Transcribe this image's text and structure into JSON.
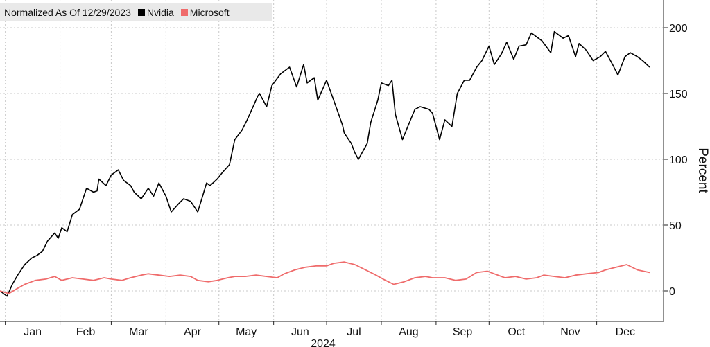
{
  "chart_data": {
    "type": "line",
    "title": "Normalized As Of 12/29/2023",
    "ylabel": "Percent",
    "xlabel": "2024",
    "ylim": [
      -25,
      220
    ],
    "yticks": [
      0,
      50,
      100,
      150,
      200
    ],
    "grid": true,
    "legend_position": "top-left",
    "x_months": [
      "Jan",
      "Feb",
      "Mar",
      "Apr",
      "May",
      "Jun",
      "Jul",
      "Aug",
      "Sep",
      "Oct",
      "Nov",
      "Dec"
    ],
    "series": [
      {
        "name": "Nvidia",
        "color": "#000000",
        "x": [
          "2023-12-29",
          "2024-01-02",
          "2024-01-05",
          "2024-01-08",
          "2024-01-10",
          "2024-01-12",
          "2024-01-16",
          "2024-01-19",
          "2024-01-22",
          "2024-01-25",
          "2024-01-29",
          "2024-01-31",
          "2024-02-02",
          "2024-02-05",
          "2024-02-08",
          "2024-02-12",
          "2024-02-14",
          "2024-02-16",
          "2024-02-20",
          "2024-02-22",
          "2024-02-23",
          "2024-02-27",
          "2024-03-01",
          "2024-03-05",
          "2024-03-08",
          "2024-03-12",
          "2024-03-14",
          "2024-03-18",
          "2024-03-22",
          "2024-03-25",
          "2024-03-28",
          "2024-04-01",
          "2024-04-04",
          "2024-04-08",
          "2024-04-11",
          "2024-04-15",
          "2024-04-19",
          "2024-04-22",
          "2024-04-24",
          "2024-04-26",
          "2024-04-30",
          "2024-05-03",
          "2024-05-07",
          "2024-05-10",
          "2024-05-14",
          "2024-05-17",
          "2024-05-21",
          "2024-05-23",
          "2024-05-24",
          "2024-05-28",
          "2024-05-31",
          "2024-06-05",
          "2024-06-10",
          "2024-06-14",
          "2024-06-18",
          "2024-06-20",
          "2024-06-24",
          "2024-06-26",
          "2024-07-01",
          "2024-07-05",
          "2024-07-10",
          "2024-07-11",
          "2024-07-15",
          "2024-07-17",
          "2024-07-19",
          "2024-07-24",
          "2024-07-26",
          "2024-07-30",
          "2024-08-01",
          "2024-08-05",
          "2024-08-07",
          "2024-08-09",
          "2024-08-13",
          "2024-08-16",
          "2024-08-20",
          "2024-08-23",
          "2024-08-28",
          "2024-08-30",
          "2024-09-03",
          "2024-09-06",
          "2024-09-10",
          "2024-09-13",
          "2024-09-17",
          "2024-09-20",
          "2024-09-24",
          "2024-09-27",
          "2024-10-01",
          "2024-10-04",
          "2024-10-08",
          "2024-10-11",
          "2024-10-15",
          "2024-10-18",
          "2024-10-22",
          "2024-10-25",
          "2024-10-29",
          "2024-10-31",
          "2024-11-05",
          "2024-11-07",
          "2024-11-12",
          "2024-11-15",
          "2024-11-19",
          "2024-11-21",
          "2024-11-25",
          "2024-11-29",
          "2024-12-03",
          "2024-12-06",
          "2024-12-10",
          "2024-12-13",
          "2024-12-17",
          "2024-12-20",
          "2024-12-24",
          "2024-12-27",
          "2024-12-31"
        ],
        "values": [
          0,
          -4,
          5,
          12,
          16,
          20,
          25,
          27,
          30,
          38,
          44,
          40,
          48,
          45,
          58,
          62,
          70,
          78,
          75,
          76,
          85,
          80,
          88,
          92,
          84,
          80,
          75,
          70,
          78,
          72,
          82,
          72,
          60,
          66,
          70,
          68,
          60,
          73,
          82,
          80,
          85,
          90,
          96,
          115,
          122,
          130,
          142,
          148,
          150,
          140,
          156,
          165,
          170,
          155,
          172,
          158,
          162,
          145,
          160,
          145,
          126,
          120,
          112,
          105,
          100,
          112,
          128,
          145,
          158,
          156,
          160,
          134,
          115,
          125,
          138,
          140,
          138,
          135,
          115,
          130,
          125,
          150,
          160,
          160,
          170,
          175,
          186,
          172,
          180,
          189,
          176,
          186,
          187,
          196,
          192,
          190,
          181,
          197,
          192,
          194,
          178,
          188,
          183,
          175,
          178,
          182,
          172,
          164,
          178,
          181,
          178,
          175,
          170
        ]
      },
      {
        "name": "Microsoft",
        "color": "#ef6b6b",
        "x": [
          "2023-12-29",
          "2024-01-03",
          "2024-01-08",
          "2024-01-12",
          "2024-01-18",
          "2024-01-24",
          "2024-01-29",
          "2024-02-02",
          "2024-02-08",
          "2024-02-14",
          "2024-02-20",
          "2024-02-26",
          "2024-03-01",
          "2024-03-07",
          "2024-03-12",
          "2024-03-18",
          "2024-03-22",
          "2024-03-28",
          "2024-04-03",
          "2024-04-09",
          "2024-04-15",
          "2024-04-19",
          "2024-04-25",
          "2024-04-30",
          "2024-05-06",
          "2024-05-10",
          "2024-05-16",
          "2024-05-22",
          "2024-05-28",
          "2024-06-03",
          "2024-06-07",
          "2024-06-13",
          "2024-06-19",
          "2024-06-25",
          "2024-07-01",
          "2024-07-05",
          "2024-07-11",
          "2024-07-17",
          "2024-07-23",
          "2024-07-29",
          "2024-08-02",
          "2024-08-08",
          "2024-08-14",
          "2024-08-20",
          "2024-08-26",
          "2024-08-30",
          "2024-09-06",
          "2024-09-12",
          "2024-09-18",
          "2024-09-24",
          "2024-09-30",
          "2024-10-04",
          "2024-10-10",
          "2024-10-16",
          "2024-10-22",
          "2024-10-28",
          "2024-11-01",
          "2024-11-07",
          "2024-11-13",
          "2024-11-19",
          "2024-11-25",
          "2024-12-02",
          "2024-12-06",
          "2024-12-12",
          "2024-12-18",
          "2024-12-24",
          "2024-12-31"
        ],
        "values": [
          0,
          -2,
          2,
          5,
          8,
          9,
          11,
          8,
          10,
          9,
          8,
          10,
          9,
          8,
          10,
          12,
          13,
          12,
          11,
          12,
          11,
          8,
          7,
          8,
          10,
          11,
          11,
          12,
          11,
          10,
          13,
          16,
          18,
          19,
          19,
          21,
          22,
          20,
          16,
          12,
          9,
          5,
          7,
          10,
          11,
          10,
          10,
          8,
          9,
          14,
          15,
          13,
          10,
          11,
          9,
          10,
          12,
          11,
          10,
          12,
          13,
          14,
          16,
          18,
          20,
          16,
          14
        ]
      }
    ]
  }
}
